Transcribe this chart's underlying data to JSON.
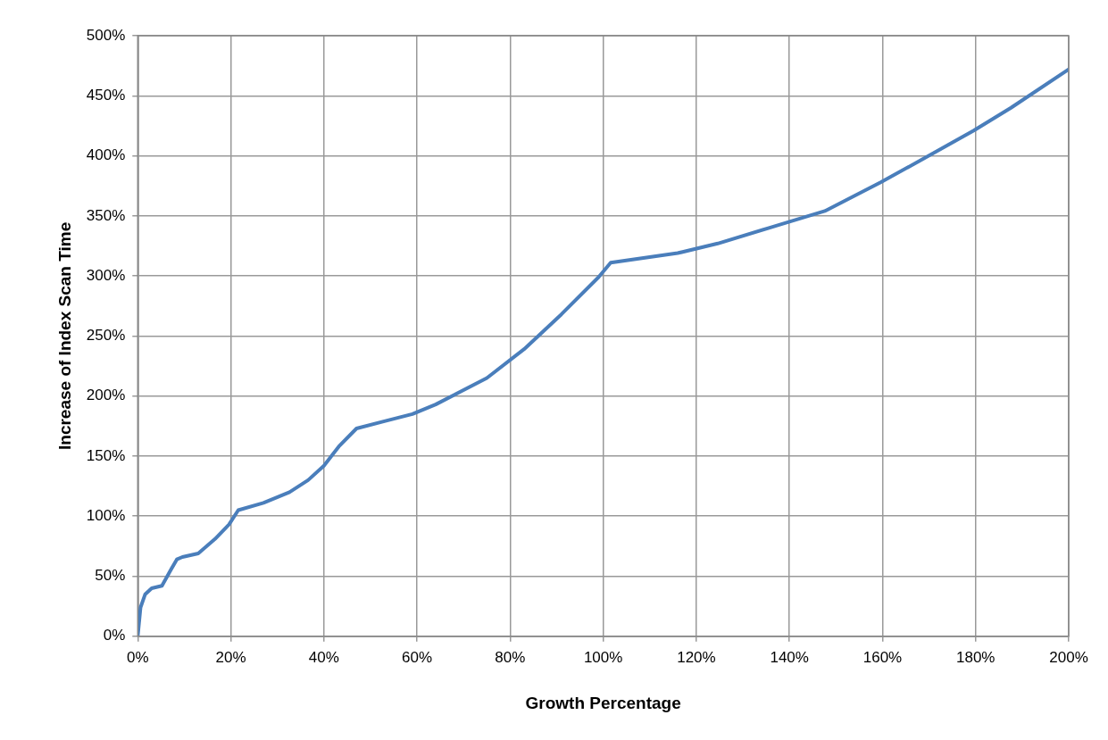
{
  "chart_data": {
    "type": "line",
    "xlabel": "Growth Percentage",
    "ylabel": "Increase of Index Scan Time",
    "series": [
      {
        "color": "#4a7ebb",
        "x": [
          0,
          0.6,
          1.6,
          3,
          5.2,
          7.2,
          8.4,
          9.6,
          13,
          16.6,
          19.6,
          21.6,
          27,
          32.6,
          36.6,
          40,
          43.2,
          47,
          53,
          59,
          64,
          75,
          83,
          91,
          99,
          101.6,
          116,
          124.6,
          135.6,
          147.6,
          159.6,
          167.6,
          179.6,
          187.6,
          200
        ],
        "values": [
          0,
          24,
          35,
          40,
          42,
          56,
          64,
          66,
          69,
          81,
          93,
          105,
          111,
          120,
          130,
          142,
          158,
          173,
          179,
          185,
          193,
          215,
          239,
          268,
          299,
          311,
          319,
          327,
          340,
          354,
          378,
          395,
          421,
          440,
          472
        ]
      }
    ],
    "xlim": [
      0,
      200
    ],
    "xticks": [
      {
        "value": 0,
        "label": "0%"
      },
      {
        "value": 20,
        "label": "20%"
      },
      {
        "value": 40,
        "label": "40%"
      },
      {
        "value": 60,
        "label": "60%"
      },
      {
        "value": 80,
        "label": "80%"
      },
      {
        "value": 100,
        "label": "100%"
      },
      {
        "value": 120,
        "label": "120%"
      },
      {
        "value": 140,
        "label": "140%"
      },
      {
        "value": 160,
        "label": "160%"
      },
      {
        "value": 180,
        "label": "180%"
      },
      {
        "value": 200,
        "label": "200%"
      }
    ],
    "ylim": [
      0,
      500
    ],
    "yticks": [
      {
        "value": 0,
        "label": "0%"
      },
      {
        "value": 50,
        "label": "50%"
      },
      {
        "value": 100,
        "label": "100%"
      },
      {
        "value": 150,
        "label": "150%"
      },
      {
        "value": 200,
        "label": "200%"
      },
      {
        "value": 250,
        "label": "250%"
      },
      {
        "value": 300,
        "label": "300%"
      },
      {
        "value": 350,
        "label": "350%"
      },
      {
        "value": 400,
        "label": "400%"
      },
      {
        "value": 450,
        "label": "450%"
      },
      {
        "value": 500,
        "label": "500%"
      }
    ],
    "grid": true,
    "legend": false,
    "marker": "none",
    "line_style": "solid"
  }
}
